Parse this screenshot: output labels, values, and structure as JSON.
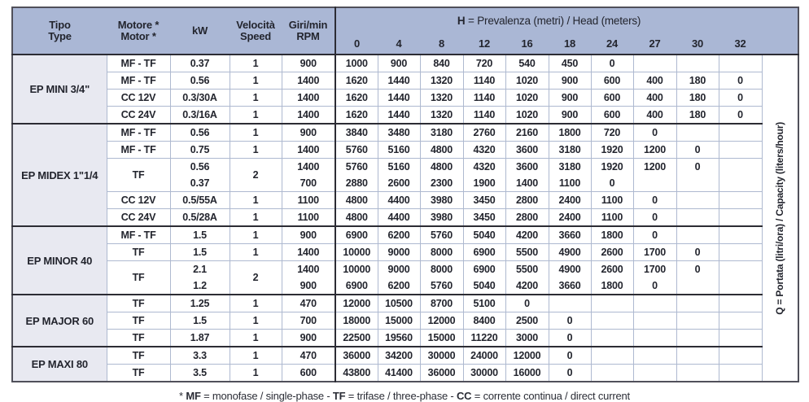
{
  "colors": {
    "header_bg": "#aab7d5",
    "section_bg": "#e8e9f1",
    "grid_light": "#aeb9d0",
    "grid_dark": "#2c2c34",
    "outer_border": "#50505a",
    "text": "#23252e"
  },
  "header": {
    "tipo": [
      "Tipo",
      "Type"
    ],
    "motore": [
      "Motore *",
      "Motor *"
    ],
    "kw": "kW",
    "velocita": [
      "Velocità",
      "Speed"
    ],
    "giri": [
      "Giri/min",
      "RPM"
    ],
    "h_title_bold": "H",
    "h_title_rest": " = Prevalenza (metri) / Head (meters)",
    "h_columns": [
      "0",
      "4",
      "8",
      "12",
      "16",
      "18",
      "24",
      "27",
      "30",
      "32"
    ]
  },
  "side_label": "Q = Portata (litri/ora) / Capacity (liters/hour)",
  "footnote_segments": [
    {
      "text": "* ",
      "bold": false
    },
    {
      "text": "MF",
      "bold": true
    },
    {
      "text": " = monofase / single-phase - ",
      "bold": false
    },
    {
      "text": "TF",
      "bold": true
    },
    {
      "text": " = trifase / three-phase - ",
      "bold": false
    },
    {
      "text": "CC",
      "bold": true
    },
    {
      "text": " = corrente continua / direct current",
      "bold": false
    }
  ],
  "sections": [
    {
      "name": "EP MINI 3/4\"",
      "rows": [
        {
          "motor": "MF - TF",
          "kw": [
            "0.37"
          ],
          "speed": "1",
          "rpm": [
            "900"
          ],
          "values": [
            [
              "1000",
              "900",
              "840",
              "720",
              "540",
              "450",
              "0",
              "",
              "",
              ""
            ]
          ]
        },
        {
          "motor": "MF - TF",
          "kw": [
            "0.56"
          ],
          "speed": "1",
          "rpm": [
            "1400"
          ],
          "values": [
            [
              "1620",
              "1440",
              "1320",
              "1140",
              "1020",
              "900",
              "600",
              "400",
              "180",
              "0"
            ]
          ]
        },
        {
          "motor": "CC 12V",
          "kw": [
            "0.3/30A"
          ],
          "speed": "1",
          "rpm": [
            "1400"
          ],
          "values": [
            [
              "1620",
              "1440",
              "1320",
              "1140",
              "1020",
              "900",
              "600",
              "400",
              "180",
              "0"
            ]
          ]
        },
        {
          "motor": "CC 24V",
          "kw": [
            "0.3/16A"
          ],
          "speed": "1",
          "rpm": [
            "1400"
          ],
          "values": [
            [
              "1620",
              "1440",
              "1320",
              "1140",
              "1020",
              "900",
              "600",
              "400",
              "180",
              "0"
            ]
          ]
        }
      ]
    },
    {
      "name": "EP MIDEX 1\"1/4",
      "rows": [
        {
          "motor": "MF - TF",
          "kw": [
            "0.56"
          ],
          "speed": "1",
          "rpm": [
            "900"
          ],
          "values": [
            [
              "3840",
              "3480",
              "3180",
              "2760",
              "2160",
              "1800",
              "720",
              "0",
              "",
              ""
            ]
          ]
        },
        {
          "motor": "MF - TF",
          "kw": [
            "0.75"
          ],
          "speed": "1",
          "rpm": [
            "1400"
          ],
          "values": [
            [
              "5760",
              "5160",
              "4800",
              "4320",
              "3600",
              "3180",
              "1920",
              "1200",
              "0",
              ""
            ]
          ]
        },
        {
          "motor": "TF",
          "kw": [
            "0.56",
            "0.37"
          ],
          "speed": "2",
          "rpm": [
            "1400",
            "700"
          ],
          "values": [
            [
              "5760",
              "5160",
              "4800",
              "4320",
              "3600",
              "3180",
              "1920",
              "1200",
              "0",
              ""
            ],
            [
              "2880",
              "2600",
              "2300",
              "1900",
              "1400",
              "1100",
              "0",
              "",
              "",
              ""
            ]
          ]
        },
        {
          "motor": "CC 12V",
          "kw": [
            "0.5/55A"
          ],
          "speed": "1",
          "rpm": [
            "1100"
          ],
          "values": [
            [
              "4800",
              "4400",
              "3980",
              "3450",
              "2800",
              "2400",
              "1100",
              "0",
              "",
              ""
            ]
          ]
        },
        {
          "motor": "CC 24V",
          "kw": [
            "0.5/28A"
          ],
          "speed": "1",
          "rpm": [
            "1100"
          ],
          "values": [
            [
              "4800",
              "4400",
              "3980",
              "3450",
              "2800",
              "2400",
              "1100",
              "0",
              "",
              ""
            ]
          ]
        }
      ]
    },
    {
      "name": "EP MINOR 40",
      "rows": [
        {
          "motor": "MF - TF",
          "kw": [
            "1.5"
          ],
          "speed": "1",
          "rpm": [
            "900"
          ],
          "values": [
            [
              "6900",
              "6200",
              "5760",
              "5040",
              "4200",
              "3660",
              "1800",
              "0",
              "",
              ""
            ]
          ]
        },
        {
          "motor": "TF",
          "kw": [
            "1.5"
          ],
          "speed": "1",
          "rpm": [
            "1400"
          ],
          "values": [
            [
              "10000",
              "9000",
              "8000",
              "6900",
              "5500",
              "4900",
              "2600",
              "1700",
              "0",
              ""
            ]
          ]
        },
        {
          "motor": "TF",
          "kw": [
            "2.1",
            "1.2"
          ],
          "speed": "2",
          "rpm": [
            "1400",
            "900"
          ],
          "values": [
            [
              "10000",
              "9000",
              "8000",
              "6900",
              "5500",
              "4900",
              "2600",
              "1700",
              "0",
              ""
            ],
            [
              "6900",
              "6200",
              "5760",
              "5040",
              "4200",
              "3660",
              "1800",
              "0",
              "",
              ""
            ]
          ]
        }
      ]
    },
    {
      "name": "EP MAJOR 60",
      "rows": [
        {
          "motor": "TF",
          "kw": [
            "1.25"
          ],
          "speed": "1",
          "rpm": [
            "470"
          ],
          "values": [
            [
              "12000",
              "10500",
              "8700",
              "5100",
              "0",
              "",
              "",
              "",
              "",
              ""
            ]
          ]
        },
        {
          "motor": "TF",
          "kw": [
            "1.5"
          ],
          "speed": "1",
          "rpm": [
            "700"
          ],
          "values": [
            [
              "18000",
              "15000",
              "12000",
              "8400",
              "2500",
              "0",
              "",
              "",
              "",
              ""
            ]
          ]
        },
        {
          "motor": "TF",
          "kw": [
            "1.87"
          ],
          "speed": "1",
          "rpm": [
            "900"
          ],
          "values": [
            [
              "22500",
              "19560",
              "15000",
              "11220",
              "3000",
              "0",
              "",
              "",
              "",
              ""
            ]
          ]
        }
      ]
    },
    {
      "name": "EP MAXI 80",
      "rows": [
        {
          "motor": "TF",
          "kw": [
            "3.3"
          ],
          "speed": "1",
          "rpm": [
            "470"
          ],
          "values": [
            [
              "36000",
              "34200",
              "30000",
              "24000",
              "12000",
              "0",
              "",
              "",
              "",
              ""
            ]
          ]
        },
        {
          "motor": "TF",
          "kw": [
            "3.5"
          ],
          "speed": "1",
          "rpm": [
            "600"
          ],
          "values": [
            [
              "43800",
              "41400",
              "36000",
              "30000",
              "16000",
              "0",
              "",
              "",
              "",
              ""
            ]
          ]
        }
      ]
    }
  ]
}
